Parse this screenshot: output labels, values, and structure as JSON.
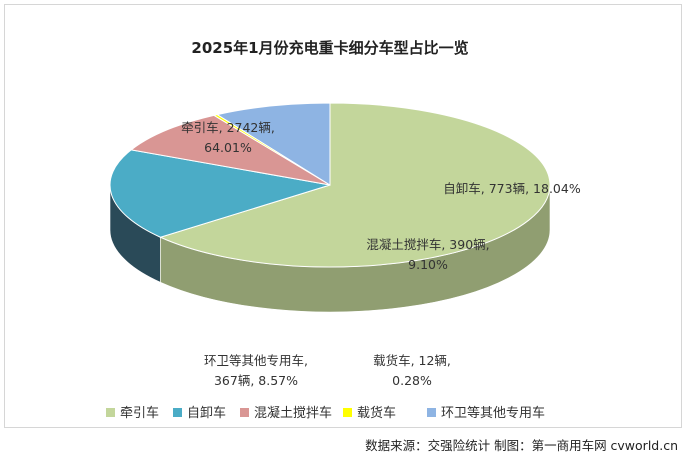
{
  "chart_data": {
    "type": "pie",
    "title": "2025年1月份充电重卡细分车型占比一览",
    "unit": "辆",
    "slices": [
      {
        "name": "牵引车",
        "value": 2742,
        "percent": "64.01%",
        "color": "#c3d69b",
        "side": "#909e71",
        "label_line1": "牵引车, 2742辆,",
        "label_line2": "64.01%"
      },
      {
        "name": "自卸车",
        "value": 773,
        "percent": "18.04%",
        "color": "#4bacc6",
        "side": "#2a4a58",
        "label_line1": "自卸车, 773辆, 18.04%",
        "label_line2": ""
      },
      {
        "name": "混凝土搅拌车",
        "value": 390,
        "percent": "9.10%",
        "color": "#d99694",
        "side": "#5e3b38",
        "label_line1": "混凝土搅拌车, 390辆,",
        "label_line2": "9.10%"
      },
      {
        "name": "载货车",
        "value": 12,
        "percent": "0.28%",
        "color": "#ffff00",
        "side": "#9a9a00",
        "label_line1": "载货车, 12辆,",
        "label_line2": "0.28%"
      },
      {
        "name": "环卫等其他专用车",
        "value": 367,
        "percent": "8.57%",
        "color": "#8eb4e3",
        "side": "#4a6185",
        "label_line1": "环卫等其他专用车,",
        "label_line2": "367辆, 8.57%"
      }
    ],
    "legend": [
      "牵引车",
      "自卸车",
      "混凝土搅拌车",
      "载货车",
      "环卫等其他专用车"
    ],
    "legend_position": "bottom"
  },
  "footer": "数据来源：交强险统计  制图：第一商用车网 cvworld.cn"
}
